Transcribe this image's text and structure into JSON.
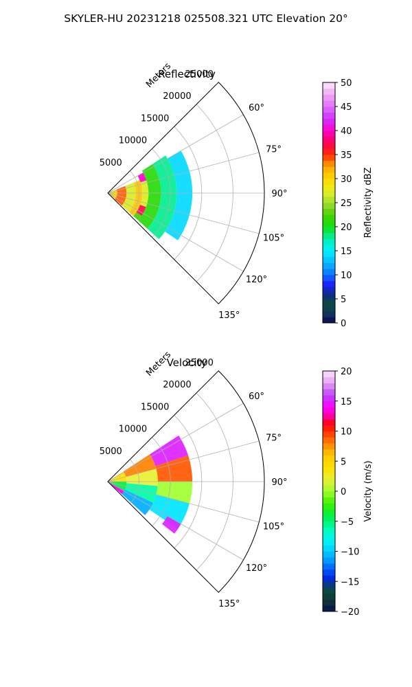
{
  "figure": {
    "title": "SKYLER-HU  20231218  025508.321 UTC Elevation 20°"
  },
  "chart_data": [
    {
      "type": "heatmap",
      "projection": "polar-sector",
      "title": "Reflectivity",
      "range_label": "Meters",
      "azimuth_range_deg": [
        45,
        135
      ],
      "range_limit_m": [
        0,
        25000
      ],
      "range_tick_labels": [
        "5000",
        "10000",
        "15000",
        "20000",
        "25000"
      ],
      "range_ticks": [
        5000,
        10000,
        15000,
        20000,
        25000
      ],
      "azimuth_tick_labels": [
        "60°",
        "75°",
        "90°",
        "105°",
        "120°",
        "135°"
      ],
      "azimuth_ticks": [
        60,
        75,
        90,
        105,
        120,
        135
      ],
      "grid": true,
      "colorbar": {
        "label": "Reflectivity dBZ",
        "range": [
          0,
          50
        ],
        "tick_labels": [
          "0",
          "5",
          "10",
          "15",
          "20",
          "25",
          "30",
          "35",
          "40",
          "45",
          "50"
        ],
        "ticks": [
          0,
          5,
          10,
          15,
          20,
          25,
          30,
          35,
          40,
          45,
          50
        ]
      },
      "data_extent": {
        "azimuth_deg": [
          57,
          132
        ],
        "range_m": [
          0,
          13500
        ]
      },
      "gates": [
        {
          "az": [
            68,
            132
          ],
          "r": [
            0,
            1500
          ],
          "value": 30
        },
        {
          "az": [
            68,
            132
          ],
          "r": [
            1500,
            3000
          ],
          "value": 34
        },
        {
          "az": [
            68,
            132
          ],
          "r": [
            3000,
            4500
          ],
          "value": 27
        },
        {
          "az": [
            68,
            132
          ],
          "r": [
            4500,
            5500
          ],
          "value": 31
        },
        {
          "az": [
            60,
            72
          ],
          "r": [
            5500,
            6500
          ],
          "value": 40
        },
        {
          "az": [
            72,
            110
          ],
          "r": [
            5500,
            6500
          ],
          "value": 27
        },
        {
          "az": [
            110,
            124
          ],
          "r": [
            5500,
            6500
          ],
          "value": 37
        },
        {
          "az": [
            124,
            132
          ],
          "r": [
            5500,
            6500
          ],
          "value": 22
        },
        {
          "az": [
            57,
            132
          ],
          "r": [
            6500,
            8500
          ],
          "value": 21
        },
        {
          "az": [
            57,
            132
          ],
          "r": [
            8500,
            11000
          ],
          "value": 18
        },
        {
          "az": [
            60,
            124
          ],
          "r": [
            11000,
            13500
          ],
          "value": 14
        }
      ]
    },
    {
      "type": "heatmap",
      "projection": "polar-sector",
      "title": "Velocity",
      "range_label": "Meters",
      "azimuth_range_deg": [
        45,
        135
      ],
      "range_limit_m": [
        0,
        25000
      ],
      "range_tick_labels": [
        "5000",
        "10000",
        "15000",
        "20000",
        "25000"
      ],
      "range_ticks": [
        5000,
        10000,
        15000,
        20000,
        25000
      ],
      "azimuth_tick_labels": [
        "60°",
        "75°",
        "90°",
        "105°",
        "120°",
        "135°"
      ],
      "azimuth_ticks": [
        60,
        75,
        90,
        105,
        120,
        135
      ],
      "grid": true,
      "colorbar": {
        "label": "Velocity (m/s)",
        "range": [
          -20,
          20
        ],
        "tick_labels": [
          "−20",
          "−15",
          "−10",
          "−5",
          "0",
          "5",
          "10",
          "15",
          "20"
        ],
        "ticks": [
          -20,
          -15,
          -10,
          -5,
          0,
          5,
          10,
          15,
          20
        ]
      },
      "data_extent": {
        "azimuth_deg": [
          57,
          132
        ],
        "range_m": [
          0,
          13500
        ]
      },
      "gates": [
        {
          "az": [
            57,
            90
          ],
          "r": [
            0,
            3000
          ],
          "value": 4
        },
        {
          "az": [
            90,
            132
          ],
          "r": [
            0,
            3000
          ],
          "value": -4
        },
        {
          "az": [
            118,
            132
          ],
          "r": [
            0,
            3000
          ],
          "value": 14
        },
        {
          "az": [
            57,
            75
          ],
          "r": [
            3000,
            8000
          ],
          "value": 8
        },
        {
          "az": [
            75,
            95
          ],
          "r": [
            3000,
            8000
          ],
          "value": 2
        },
        {
          "az": [
            95,
            115
          ],
          "r": [
            3000,
            8000
          ],
          "value": -6
        },
        {
          "az": [
            115,
            132
          ],
          "r": [
            3000,
            8000
          ],
          "value": -11
        },
        {
          "az": [
            57,
            72
          ],
          "r": [
            8000,
            13500
          ],
          "value": 15
        },
        {
          "az": [
            72,
            90
          ],
          "r": [
            8000,
            13500
          ],
          "value": 9
        },
        {
          "az": [
            90,
            105
          ],
          "r": [
            8000,
            13500
          ],
          "value": 0
        },
        {
          "az": [
            105,
            124
          ],
          "r": [
            8000,
            13500
          ],
          "value": -9
        },
        {
          "az": [
            120,
            128
          ],
          "r": [
            11000,
            13500
          ],
          "value": 15
        }
      ]
    }
  ]
}
